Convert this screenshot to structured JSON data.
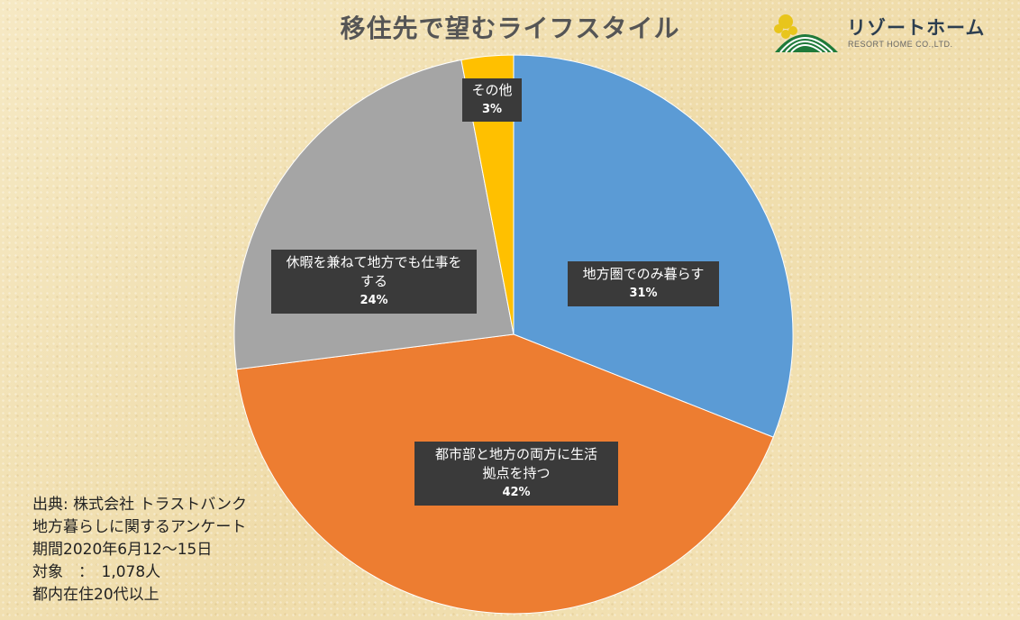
{
  "header": {
    "title": "移住先で望むライフスタイル",
    "logo_name": "リゾートホーム",
    "logo_sub": "RESORT HOME CO.,LTD."
  },
  "chart_data": {
    "type": "pie",
    "title": "移住先で望むライフスタイル",
    "slices": [
      {
        "label": "地方圏でのみ暮らす",
        "value": 31,
        "display": "31%",
        "color": "#5b9bd5"
      },
      {
        "label": "都市部と地方の両方に生活拠点を持つ",
        "value": 42,
        "display": "42%",
        "color": "#ed7d31"
      },
      {
        "label": "休暇を兼ねて地方でも仕事をする",
        "value": 24,
        "display": "24%",
        "color": "#a5a5a5"
      },
      {
        "label": "その他",
        "value": 3,
        "display": "3%",
        "color": "#ffc000"
      }
    ],
    "start": "12 o'clock, clockwise"
  },
  "labels": {
    "slice0": {
      "line1": "地方圏でのみ暮らす",
      "line2": "",
      "pct": "31%"
    },
    "slice1": {
      "line1": "都市部と地方の両方に生活",
      "line2": "拠点を持つ",
      "pct": "42%"
    },
    "slice2": {
      "line1": "休暇を兼ねて地方でも仕事を",
      "line2": "する",
      "pct": "24%"
    },
    "slice3": {
      "line1": "その他",
      "line2": "",
      "pct": "3%"
    }
  },
  "source": {
    "line1": "出典: 株式会社 トラストバンク",
    "line2": "地方暮らしに関するアンケート",
    "line3": "期間2020年6月12～15日",
    "line4": "対象　：　1,078人",
    "line5": "都内在住20代以上"
  }
}
